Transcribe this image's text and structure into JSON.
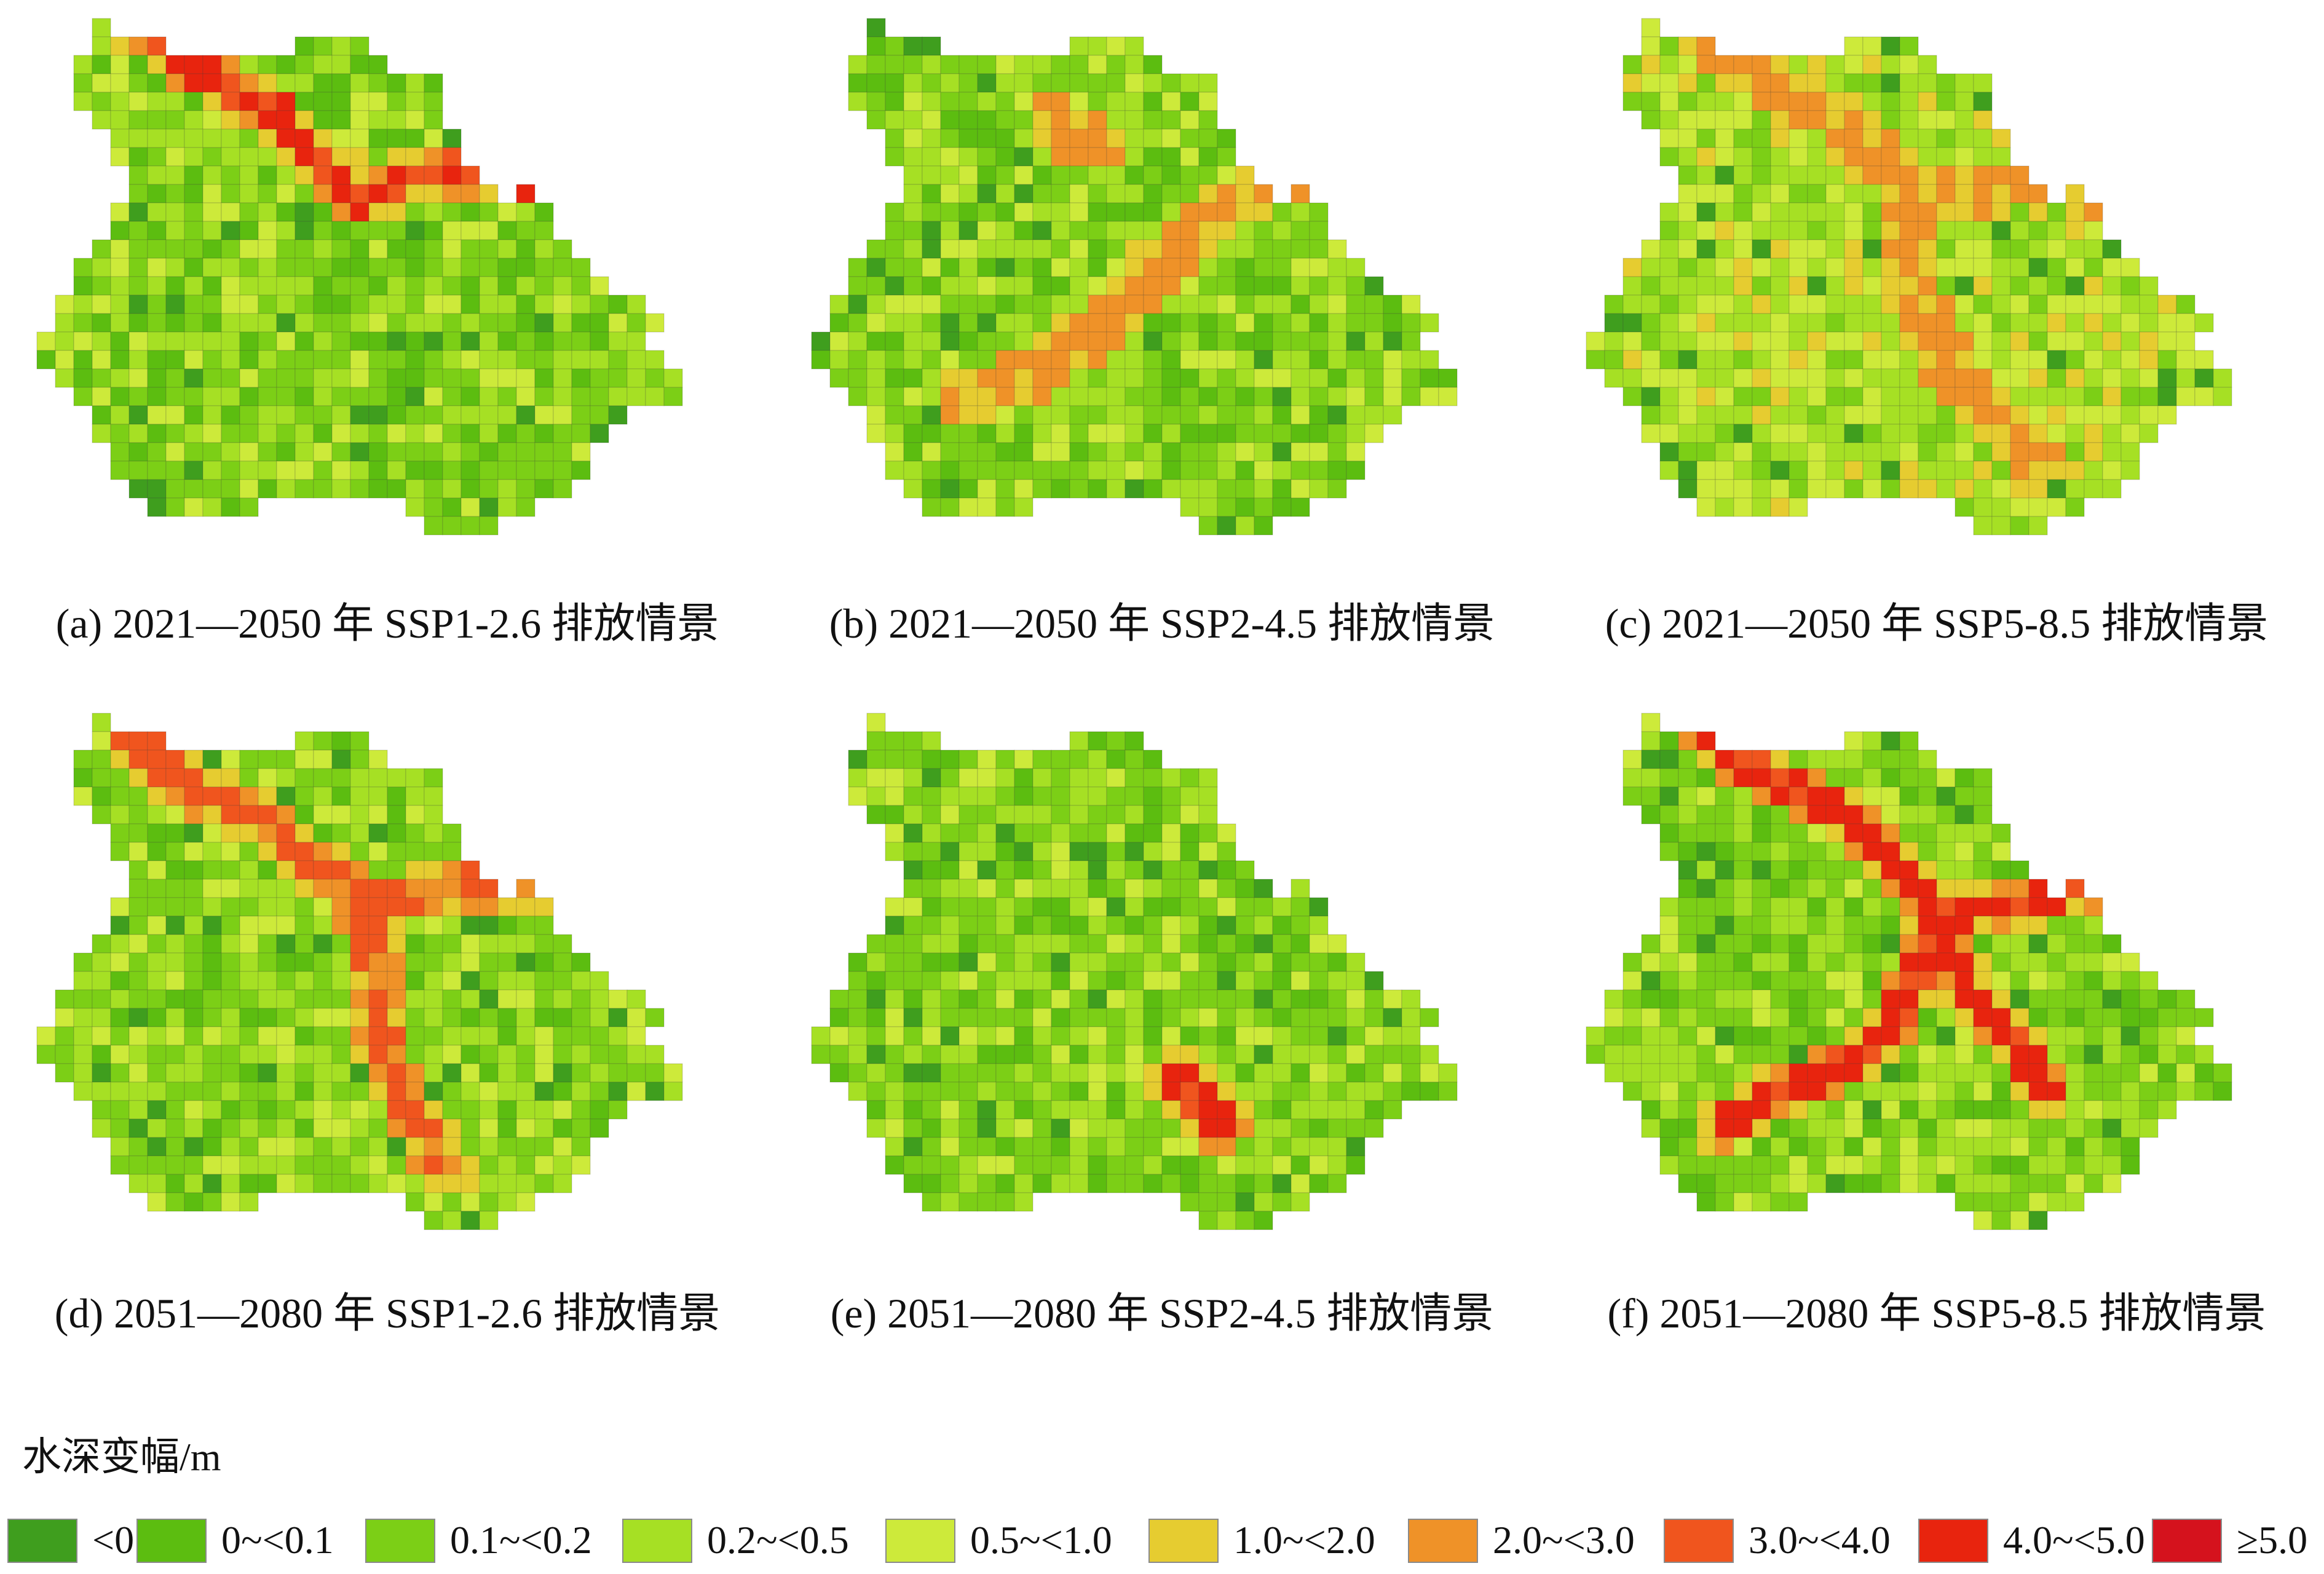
{
  "panels": [
    {
      "caption": "(a) 2021—2050 年 SSP1-2.6 排放情景",
      "scenario": "a"
    },
    {
      "caption": "(b) 2021—2050 年 SSP2-4.5 排放情景",
      "scenario": "b"
    },
    {
      "caption": "(c) 2021—2050 年 SSP5-8.5 排放情景",
      "scenario": "c"
    },
    {
      "caption": "(d) 2051—2080 年 SSP1-2.6 排放情景",
      "scenario": "d"
    },
    {
      "caption": "(e) 2051—2080 年 SSP2-4.5 排放情景",
      "scenario": "e"
    },
    {
      "caption": "(f) 2051—2080 年 SSP5-8.5 排放情景",
      "scenario": "f"
    }
  ],
  "legend": {
    "title": "水深变幅/m",
    "classes": [
      {
        "label": "<0",
        "color": "#3f9e1e"
      },
      {
        "label": "0~<0.1",
        "color": "#5cbd10"
      },
      {
        "label": "0.1~<0.2",
        "color": "#7ccf16"
      },
      {
        "label": "0.2~<0.5",
        "color": "#a6e024"
      },
      {
        "label": "0.5~<1.0",
        "color": "#cdea3a"
      },
      {
        "label": "1.0~<2.0",
        "color": "#e6cc30"
      },
      {
        "label": "2.0~<3.0",
        "color": "#ef9228"
      },
      {
        "label": "3.0~<4.0",
        "color": "#f0551e"
      },
      {
        "label": "4.0~<5.0",
        "color": "#e8240e"
      },
      {
        "label": "≥5.0",
        "color": "#d5121d"
      }
    ]
  }
}
